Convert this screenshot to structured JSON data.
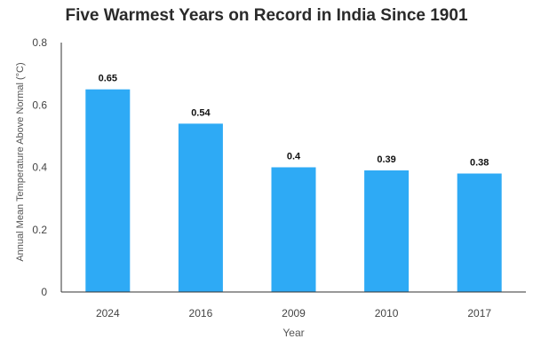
{
  "chart_data": {
    "type": "bar",
    "title": "Five Warmest Years on Record in India Since 1901",
    "xlabel": "Year",
    "ylabel": "Annual Mean Temperature Above Normal (°C)",
    "categories": [
      "2024",
      "2016",
      "2009",
      "2010",
      "2017"
    ],
    "values": [
      0.65,
      0.54,
      0.4,
      0.39,
      0.38
    ],
    "data_labels": [
      "0.65",
      "0.54",
      "0.4",
      "0.39",
      "0.38"
    ],
    "ylim": [
      0,
      0.8
    ],
    "yticks": [
      0,
      0.2,
      0.4,
      0.6,
      0.8
    ],
    "ytick_labels": [
      "0",
      "0.2",
      "0.4",
      "0.6",
      "0.8"
    ],
    "grid": false,
    "legend": "none",
    "bar_color": "#2eaaf5"
  }
}
